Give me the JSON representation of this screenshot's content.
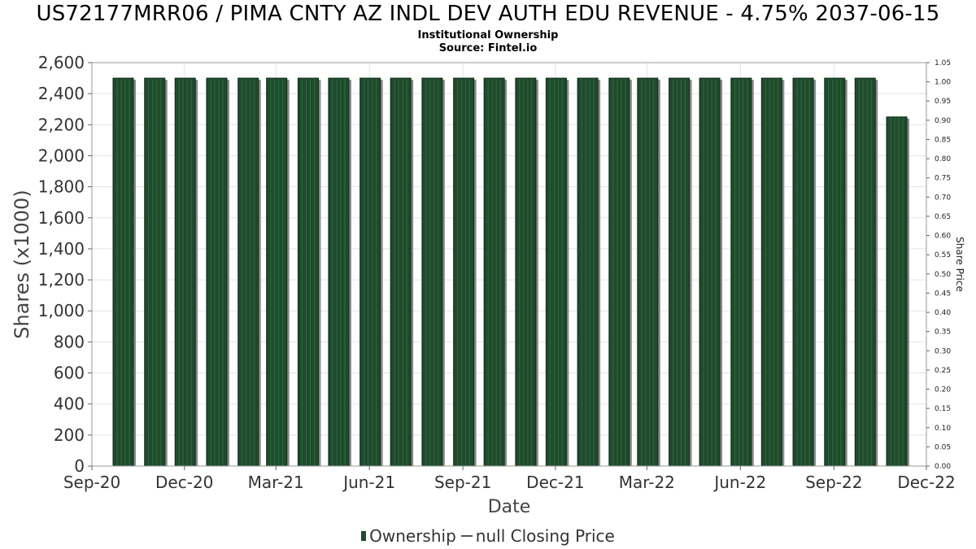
{
  "chart_data": {
    "type": "bar",
    "title": "US72177MRR06 / PIMA CNTY AZ INDL DEV AUTH EDU REVENUE - 4.75% 2037-06-15",
    "subtitle": "Institutional Ownership",
    "source": "Source: Fintel.io",
    "xlabel": "Date",
    "ylabel": "Shares (x1000)",
    "y2label": "Share Price",
    "ylim": [
      0,
      2600
    ],
    "y2lim": [
      0,
      1.05
    ],
    "yticks": [
      "0",
      "200",
      "400",
      "600",
      "800",
      "1,000",
      "1,200",
      "1,400",
      "1,600",
      "1,800",
      "2,000",
      "2,200",
      "2,400",
      "2,600"
    ],
    "y2ticks": [
      "0.00",
      "0.05",
      "0.10",
      "0.15",
      "0.20",
      "0.25",
      "0.30",
      "0.35",
      "0.40",
      "0.45",
      "0.50",
      "0.55",
      "0.60",
      "0.65",
      "0.70",
      "0.75",
      "0.80",
      "0.85",
      "0.90",
      "0.95",
      "1.00",
      "1.05"
    ],
    "xticks": [
      "Sep-20",
      "Dec-20",
      "Mar-21",
      "Jun-21",
      "Sep-21",
      "Dec-21",
      "Mar-22",
      "Jun-22",
      "Sep-22",
      "Dec-22"
    ],
    "xlim": [
      "2020-09-01",
      "2022-12-01"
    ],
    "series": [
      {
        "name": "Ownership",
        "color": "#1f4a2c",
        "dates": [
          "2020-10-01",
          "2020-11-01",
          "2020-12-01",
          "2021-01-01",
          "2021-02-01",
          "2021-03-01",
          "2021-04-01",
          "2021-05-01",
          "2021-06-01",
          "2021-07-01",
          "2021-08-01",
          "2021-09-01",
          "2021-10-01",
          "2021-11-01",
          "2021-12-01",
          "2022-01-01",
          "2022-02-01",
          "2022-03-01",
          "2022-04-01",
          "2022-05-01",
          "2022-06-01",
          "2022-07-01",
          "2022-08-01",
          "2022-09-01",
          "2022-10-01",
          "2022-11-01"
        ],
        "values": [
          2500,
          2500,
          2500,
          2500,
          2500,
          2500,
          2500,
          2500,
          2500,
          2500,
          2500,
          2500,
          2500,
          2500,
          2500,
          2500,
          2500,
          2500,
          2500,
          2500,
          2500,
          2500,
          2500,
          2500,
          2500,
          2250
        ]
      }
    ],
    "legend": [
      "Ownership",
      "null Closing Price"
    ],
    "legend_position": "bottom",
    "grid": true
  }
}
